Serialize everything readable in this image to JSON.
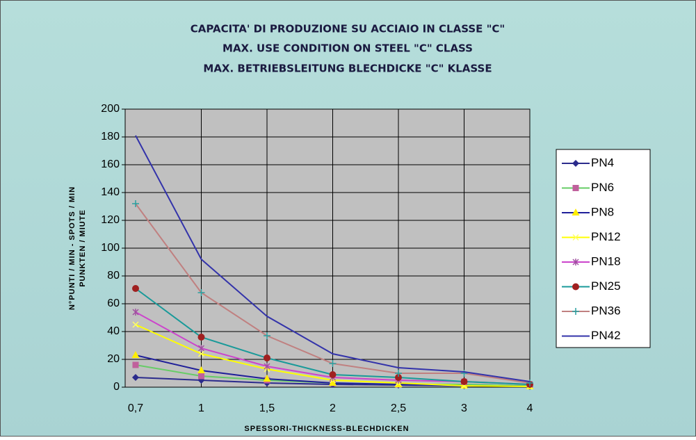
{
  "chart_data": {
    "type": "line",
    "title": [
      "CAPACITA' DI PRODUZIONE SU ACCIAIO IN CLASSE \"C\"",
      "MAX. USE CONDITION ON STEEL \"C\" CLASS",
      "MAX. BETRIEBSLEITUNG BLECHDICKE \"C\" KLASSE"
    ],
    "y_label": [
      "N°PUNTI / MIN  -  SPOTS / MIN",
      "PUNKTEN / MIUTE"
    ],
    "x_label": "SPESSORI-THICKNESS-BLECHDICKEN",
    "categories": [
      "0,7",
      "1",
      "1,5",
      "2",
      "2,5",
      "3",
      "4"
    ],
    "ylim": [
      0,
      200
    ],
    "yticks": [
      0,
      20,
      40,
      60,
      80,
      100,
      120,
      140,
      160,
      180,
      200
    ],
    "grid": true,
    "legend": "right",
    "series": [
      {
        "name": "PN4",
        "color": "#2b2b8c",
        "marker": "diamond",
        "marker_color": "#2b2b8c",
        "values": [
          7,
          5,
          3,
          2,
          1.5,
          1,
          0.5
        ]
      },
      {
        "name": "PN6",
        "color": "#66cc66",
        "marker": "square",
        "marker_color": "#c0609c",
        "values": [
          16,
          8,
          5,
          3,
          2,
          2,
          1
        ]
      },
      {
        "name": "PN8",
        "color": "#1f1f99",
        "marker": "triangle",
        "marker_color": "#ffee00",
        "values": [
          23,
          12,
          6,
          3,
          2,
          1,
          0.5
        ]
      },
      {
        "name": "PN12",
        "color": "#ffff00",
        "marker": "x",
        "marker_color": "#ffff66",
        "values": [
          45,
          24,
          13,
          5,
          3,
          1,
          0.5
        ]
      },
      {
        "name": "PN18",
        "color": "#cc44cc",
        "marker": "star",
        "marker_color": "#a050a0",
        "values": [
          54,
          28,
          15,
          7,
          5,
          4,
          2
        ]
      },
      {
        "name": "PN25",
        "color": "#199a99",
        "marker": "circle",
        "marker_color": "#a02020",
        "values": [
          71,
          36,
          21,
          9,
          7,
          4,
          2
        ]
      },
      {
        "name": "PN36",
        "color": "#c08080",
        "marker": "plus",
        "marker_color": "#2aa0a0",
        "values": [
          132,
          68,
          37,
          17,
          10,
          10,
          3
        ]
      },
      {
        "name": "PN42",
        "color": "#3333aa",
        "marker": "none",
        "marker_color": "#3333aa",
        "values": [
          181,
          92,
          51,
          24,
          14,
          11,
          4
        ]
      }
    ]
  }
}
